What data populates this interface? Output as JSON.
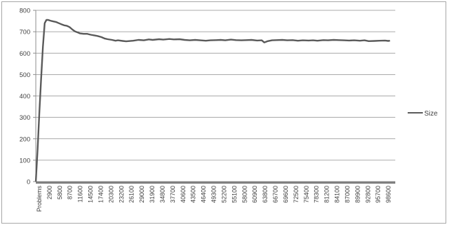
{
  "chart_data": {
    "type": "line",
    "title": "",
    "xlabel": "",
    "ylabel": "",
    "ylim": [
      0,
      800
    ],
    "y_ticks": [
      0,
      100,
      200,
      300,
      400,
      500,
      600,
      700,
      800
    ],
    "x_tick_labels": [
      "Problems",
      "2900",
      "5800",
      "8700",
      "11600",
      "14500",
      "17400",
      "20300",
      "23200",
      "26100",
      "29000",
      "31900",
      "34800",
      "37700",
      "40600",
      "43500",
      "46400",
      "49300",
      "52200",
      "55100",
      "58000",
      "60900",
      "63800",
      "66700",
      "69600",
      "72500",
      "75400",
      "78300",
      "81200",
      "84100",
      "87000",
      "89900",
      "92800",
      "95700",
      "98600"
    ],
    "grid": "horizontal",
    "legend_position": "right",
    "series": [
      {
        "name": "Size",
        "color": "#595959",
        "x": [
          0,
          500,
          1000,
          1500,
          2000,
          2500,
          3000,
          3500,
          4000,
          4500,
          5000,
          5800,
          6500,
          7200,
          8000,
          8700,
          9500,
          10200,
          11000,
          11600,
          12500,
          13500,
          14500,
          15500,
          16500,
          17400,
          18500,
          19500,
          20300,
          21500,
          22500,
          23200,
          24500,
          25500,
          26100,
          27500,
          29000,
          30500,
          31900,
          33000,
          34800,
          36000,
          37700,
          39000,
          40600,
          42000,
          43500,
          45000,
          46400,
          48000,
          49300,
          51000,
          52200,
          53500,
          55100,
          56500,
          58000,
          59500,
          60900,
          62500,
          63800,
          64500,
          65500,
          66700,
          68000,
          69600,
          71000,
          72500,
          74000,
          75400,
          77000,
          78300,
          79500,
          81200,
          82500,
          84100,
          85500,
          87000,
          88500,
          89900,
          91500,
          92800,
          94000,
          95700,
          97000,
          98600,
          99500,
          100000
        ],
        "values": [
          0,
          150,
          320,
          480,
          630,
          740,
          755,
          755,
          752,
          750,
          748,
          745,
          740,
          735,
          730,
          728,
          722,
          712,
          702,
          698,
          692,
          690,
          690,
          686,
          683,
          680,
          675,
          668,
          665,
          662,
          658,
          660,
          657,
          655,
          656,
          658,
          662,
          660,
          664,
          662,
          665,
          663,
          666,
          664,
          665,
          662,
          660,
          662,
          660,
          658,
          660,
          661,
          662,
          660,
          663,
          661,
          660,
          661,
          662,
          659,
          660,
          650,
          656,
          660,
          661,
          662,
          660,
          661,
          658,
          660,
          659,
          660,
          658,
          661,
          660,
          662,
          661,
          660,
          659,
          660,
          658,
          660,
          656,
          657,
          658,
          659,
          657,
          658
        ]
      }
    ]
  }
}
